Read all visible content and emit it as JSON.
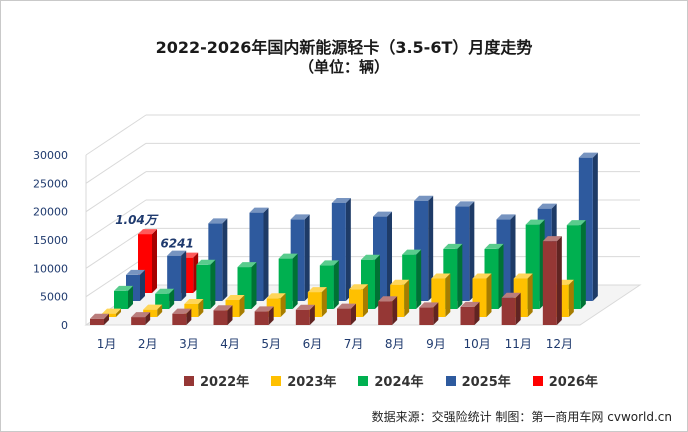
{
  "chart_data": {
    "type": "bar",
    "title": "2022-2026年国内新能源轻卡（3.5-6T）月度走势",
    "subtitle": "（单位：辆）",
    "categories": [
      "1月",
      "2月",
      "3月",
      "4月",
      "5月",
      "6月",
      "7月",
      "8月",
      "9月",
      "10月",
      "11月",
      "12月"
    ],
    "ylim": [
      0,
      30000
    ],
    "yticks": [
      "0",
      "5000",
      "10000",
      "15000",
      "20000",
      "25000",
      "30000"
    ],
    "series": [
      {
        "name": "2022年",
        "color": "#953735",
        "values": [
          1100,
          1400,
          2000,
          2600,
          2400,
          2700,
          2900,
          4200,
          3100,
          3200,
          4800,
          14800
        ]
      },
      {
        "name": "2023年",
        "color": "#ffc000",
        "values": [
          600,
          1300,
          2300,
          3000,
          3300,
          4400,
          4900,
          5700,
          6800,
          6800,
          6800,
          5700
        ]
      },
      {
        "name": "2024年",
        "color": "#00b050",
        "values": [
          3200,
          2700,
          7800,
          7400,
          8900,
          7700,
          8700,
          9600,
          10600,
          10600,
          14900,
          14800
        ]
      },
      {
        "name": "2025年",
        "color": "#2e5a9e",
        "values": [
          4600,
          8000,
          13700,
          15600,
          14400,
          17300,
          14900,
          17700,
          16700,
          14400,
          16300,
          25300
        ]
      },
      {
        "name": "2026年",
        "color": "#ff0000",
        "values": [
          10400,
          6241,
          null,
          null,
          null,
          null,
          null,
          null,
          null,
          null,
          null,
          null
        ]
      }
    ],
    "annotations": [
      {
        "label": "1.04万",
        "series": "2026年",
        "category": "1月"
      },
      {
        "label": "6241",
        "series": "2026年",
        "category": "2月"
      }
    ],
    "legend_position": "bottom",
    "grid": true
  },
  "source_text": "数据来源：交强险统计  制图：第一商用车网 cvworld.cn"
}
